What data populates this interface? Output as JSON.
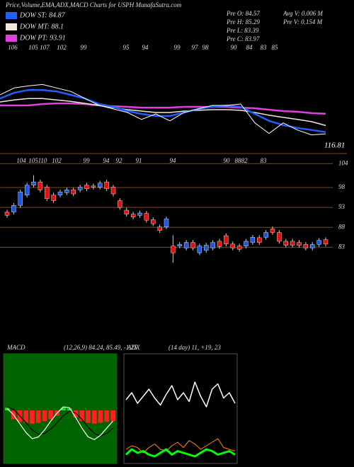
{
  "header": {
    "title": "Price,Volume,EMA,ADX,MACD Charts for USPH MunafaSutra.com",
    "stats_left": [
      "Pre O: 84.57",
      "Pre H: 85.29",
      "Pre L: 83.39",
      "Pre C: 83.97"
    ],
    "stats_right": [
      "Avg V: 0.006 M",
      "Pre V: 0.154 M"
    ]
  },
  "chart_data": [
    {
      "type": "line",
      "top_labels": [
        "106",
        "105",
        "107",
        "102",
        "99",
        "95",
        "94",
        "99",
        "97",
        "98",
        "90",
        "84",
        "83",
        "85"
      ],
      "annotation": "116.81",
      "ylim": [
        75,
        129
      ],
      "series": [
        {
          "name": "DOW PT: 93.91",
          "color": "#e040e0",
          "width": 2.5,
          "values": [
            98.0,
            98.0,
            98.0,
            98.7,
            99.0,
            99.0,
            98.7,
            98.0,
            97.6,
            97.3,
            96.9,
            96.9,
            96.9,
            97.3,
            97.3,
            97.3,
            97.3,
            96.9,
            96.6,
            95.9,
            95.2,
            94.9,
            94.2,
            93.91
          ]
        },
        {
          "name": "DOW MT: 88.1",
          "color": "#f2e8d5",
          "width": 1.5,
          "values": [
            99.7,
            100.7,
            101.4,
            101.4,
            100.7,
            100.0,
            99.0,
            98.0,
            96.9,
            95.9,
            95.2,
            94.5,
            94.5,
            95.2,
            95.6,
            95.9,
            95.9,
            95.6,
            94.5,
            93.2,
            92.1,
            91.1,
            90.0,
            88.1
          ]
        },
        {
          "name": "DOW ST: 84.87",
          "color": "#2060ff",
          "width": 2.5,
          "values": [
            101.4,
            104.2,
            105.6,
            105.6,
            104.9,
            103.2,
            101.4,
            98.7,
            97.3,
            95.2,
            93.8,
            92.8,
            92.8,
            94.5,
            96.3,
            97.3,
            98.0,
            97.3,
            93.8,
            90.4,
            88.3,
            86.9,
            85.9,
            84.87
          ]
        },
        {
          "color": "#ffffff",
          "width": 1,
          "values": [
            103.2,
            106.6,
            107.6,
            108.3,
            106.6,
            104.9,
            101.4,
            98.0,
            96.3,
            94.5,
            91.1,
            93.8,
            90.4,
            94.5,
            96.3,
            98.0,
            98.0,
            98.7,
            89.4,
            84.2,
            89.4,
            85.9,
            83.5,
            83.97
          ]
        }
      ]
    },
    {
      "type": "candlestick",
      "top_labels": [
        "104",
        "105",
        "110",
        "102",
        "99",
        "94",
        "92",
        "91",
        "94",
        "90",
        "88",
        "82",
        "83"
      ],
      "ylim": [
        74,
        106
      ],
      "yticks": [
        104,
        98,
        93,
        88,
        83
      ],
      "up_color": "#1e56e0",
      "down_color": "#e31010",
      "open": [
        91.8,
        91.8,
        93.5,
        96.1,
        98.6,
        99.4,
        98.1,
        96.1,
        96.1,
        96.7,
        97.4,
        97.4,
        98.6,
        98.4,
        98.1,
        99.4,
        98.1,
        94.7,
        92.3,
        91.3,
        91.0,
        91.5,
        89.9,
        88.1,
        88.1,
        83.3,
        83.3,
        82.8,
        84.2,
        81.6,
        82.2,
        82.8,
        84.5,
        85.9,
        83.8,
        83.3,
        83.3,
        84.2,
        85.4,
        85.5,
        87.6,
        86.7,
        84.5,
        84.5,
        84.2,
        83.7,
        82.8,
        83.7,
        84.9
      ],
      "high": [
        92.4,
        94.1,
        97.5,
        99.2,
        101.1,
        100.0,
        98.7,
        96.7,
        97.5,
        98.0,
        98.0,
        98.7,
        99.2,
        99.0,
        99.7,
        100.0,
        98.7,
        95.3,
        92.9,
        91.9,
        92.2,
        92.1,
        90.5,
        88.7,
        90.7,
        86.0,
        84.3,
        84.8,
        84.8,
        83.9,
        84.1,
        84.8,
        85.1,
        86.5,
        84.4,
        83.9,
        85.1,
        86.1,
        86.0,
        87.3,
        88.2,
        87.3,
        85.1,
        85.1,
        84.8,
        84.3,
        84.3,
        85.3,
        85.5
      ],
      "low": [
        90.4,
        91.2,
        92.9,
        95.5,
        98.0,
        96.8,
        94.6,
        94.1,
        95.5,
        96.1,
        95.8,
        96.8,
        97.1,
        97.5,
        97.5,
        97.1,
        95.8,
        92.4,
        90.7,
        90.0,
        90.4,
        89.2,
        88.3,
        86.6,
        87.5,
        79.1,
        82.7,
        82.2,
        82.2,
        81.0,
        81.6,
        82.2,
        82.6,
        83.2,
        82.2,
        81.9,
        82.7,
        83.6,
        83.6,
        84.9,
        86.1,
        83.9,
        82.9,
        82.9,
        82.9,
        82.2,
        82.2,
        83.1,
        83.2
      ],
      "close": [
        91.0,
        93.5,
        96.9,
        98.6,
        99.4,
        97.4,
        95.2,
        94.7,
        96.9,
        97.4,
        96.4,
        98.1,
        97.7,
        98.1,
        99.1,
        97.7,
        96.4,
        93.0,
        91.3,
        90.6,
        91.6,
        89.8,
        88.9,
        87.2,
        90.1,
        81.6,
        83.7,
        84.2,
        82.8,
        83.3,
        83.5,
        84.2,
        83.2,
        83.8,
        82.8,
        82.5,
        84.5,
        85.5,
        84.2,
        86.7,
        86.7,
        84.5,
        83.5,
        83.5,
        83.5,
        82.8,
        83.7,
        84.7,
        83.8
      ]
    },
    {
      "type": "macd",
      "label": "MACD",
      "params": "(12,26,9) 84.24, 85.49, -1.25",
      "ylim": [
        -6,
        6
      ],
      "background": "#006400",
      "up_color": "#22dd22",
      "down_color": "#ff2020",
      "histogram": [
        0.3,
        -1.0,
        -1.3,
        -1.4,
        -1.5,
        -1.4,
        -1.2,
        -1.0,
        -0.6,
        0.3,
        0.2,
        -0.8,
        -1.2,
        -1.4,
        -1.5,
        -1.4,
        -1.3,
        -1.2
      ],
      "series": [
        {
          "color": "#000000",
          "values": [
            0.4,
            0.1,
            -0.6,
            -1.4,
            -2.2,
            -2.7,
            -2.6,
            -2.1,
            -1.4,
            -0.6,
            -0.1,
            -0.3,
            -1.0,
            -1.9,
            -2.6,
            -2.9,
            -2.6,
            -2.0
          ]
        },
        {
          "color": "#ffffff",
          "values": [
            0.2,
            -0.5,
            -1.5,
            -2.5,
            -3.2,
            -3.0,
            -2.2,
            -1.2,
            -0.3,
            0.4,
            0.3,
            -0.8,
            -2.0,
            -3.0,
            -3.3,
            -2.8,
            -2.0,
            -1.2
          ]
        }
      ]
    },
    {
      "type": "adx",
      "label": "ADX",
      "params": "(14 day) 11, +19, 23",
      "ylim": [
        0,
        60
      ],
      "background": "#000000",
      "series": [
        {
          "color": "#ffffff",
          "width": 1.5,
          "values": [
            36,
            40,
            34,
            38,
            42,
            37,
            33,
            39,
            44,
            36,
            40,
            35,
            46,
            38,
            32,
            42,
            45,
            37,
            40,
            34
          ]
        },
        {
          "color": "#ff8c00",
          "width": 1,
          "values": [
            8,
            10,
            9,
            6,
            9,
            11,
            8,
            7,
            10,
            12,
            9,
            13,
            11,
            8,
            10,
            12,
            14,
            9,
            8,
            7
          ]
        },
        {
          "color": "#00ff00",
          "width": 3,
          "values": [
            5,
            8,
            6,
            7,
            5,
            4,
            6,
            8,
            5,
            7,
            6,
            5,
            4,
            6,
            8,
            7,
            5,
            6,
            7,
            5
          ]
        }
      ]
    }
  ]
}
